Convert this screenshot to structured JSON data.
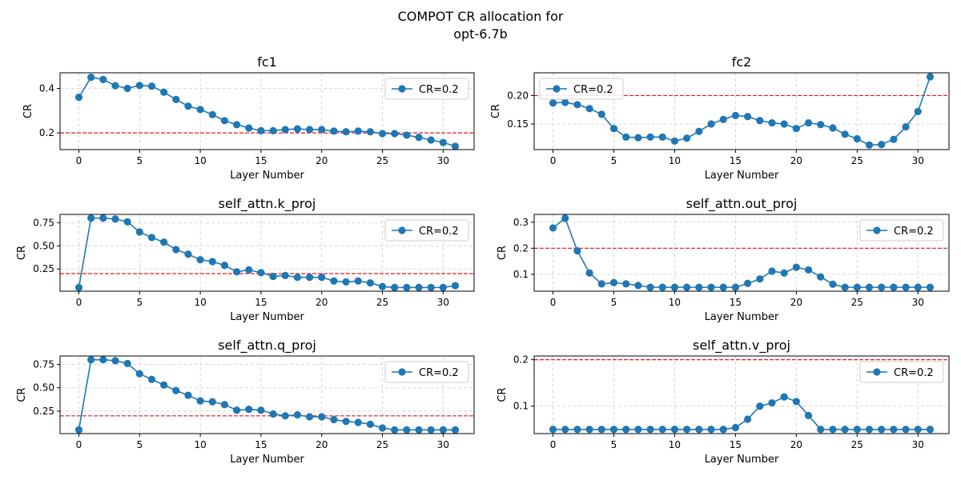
{
  "figure": {
    "title_line1": "COMPOT CR allocation for",
    "title_line2": "opt-6.7b"
  },
  "colors": {
    "series": "#1f77b4",
    "reference": "#e41a1c",
    "grid": "#b0b0b0",
    "axis": "#000000"
  },
  "chart_data": [
    {
      "type": "line",
      "title": "fc1",
      "xlabel": "Layer Number",
      "ylabel": "CR",
      "xlim": [
        -1.55,
        32.55
      ],
      "ylim": [
        0.125,
        0.47
      ],
      "xticks": [
        0,
        5,
        10,
        15,
        20,
        25,
        30
      ],
      "yticks": [
        0.2,
        0.4
      ],
      "ytick_labels": [
        "0.2",
        "0.4"
      ],
      "reference_line": 0.2,
      "legend": "upper right",
      "series": [
        {
          "name": "CR=0.2",
          "x": [
            0,
            1,
            2,
            3,
            4,
            5,
            6,
            7,
            8,
            9,
            10,
            11,
            12,
            13,
            14,
            15,
            16,
            17,
            18,
            19,
            20,
            21,
            22,
            23,
            24,
            25,
            26,
            27,
            28,
            29,
            30,
            31
          ],
          "values": [
            0.36,
            0.45,
            0.44,
            0.412,
            0.4,
            0.413,
            0.41,
            0.383,
            0.35,
            0.32,
            0.305,
            0.282,
            0.255,
            0.237,
            0.222,
            0.21,
            0.21,
            0.215,
            0.218,
            0.215,
            0.215,
            0.208,
            0.205,
            0.208,
            0.205,
            0.197,
            0.197,
            0.19,
            0.18,
            0.168,
            0.157,
            0.14
          ]
        }
      ]
    },
    {
      "type": "line",
      "title": "fc2",
      "xlabel": "Layer Number",
      "ylabel": "CR",
      "xlim": [
        -1.55,
        32.55
      ],
      "ylim": [
        0.105,
        0.24
      ],
      "xticks": [
        0,
        5,
        10,
        15,
        20,
        25,
        30
      ],
      "yticks": [
        0.15,
        0.2
      ],
      "ytick_labels": [
        "0.15",
        "0.20"
      ],
      "reference_line": 0.2,
      "legend": "upper left",
      "series": [
        {
          "name": "CR=0.2",
          "x": [
            0,
            1,
            2,
            3,
            4,
            5,
            6,
            7,
            8,
            9,
            10,
            11,
            12,
            13,
            14,
            15,
            16,
            17,
            18,
            19,
            20,
            21,
            22,
            23,
            24,
            25,
            26,
            27,
            28,
            29,
            30,
            31
          ],
          "values": [
            0.187,
            0.188,
            0.184,
            0.177,
            0.167,
            0.142,
            0.127,
            0.126,
            0.127,
            0.127,
            0.12,
            0.125,
            0.137,
            0.15,
            0.158,
            0.165,
            0.163,
            0.156,
            0.152,
            0.15,
            0.142,
            0.152,
            0.149,
            0.143,
            0.132,
            0.124,
            0.113,
            0.114,
            0.123,
            0.145,
            0.172,
            0.233
          ]
        }
      ]
    },
    {
      "type": "line",
      "title": "self_attn.k_proj",
      "xlabel": "Layer Number",
      "ylabel": "CR",
      "xlim": [
        -1.55,
        32.55
      ],
      "ylim": [
        0.01,
        0.84
      ],
      "xticks": [
        0,
        5,
        10,
        15,
        20,
        25,
        30
      ],
      "yticks": [
        0.25,
        0.5,
        0.75
      ],
      "ytick_labels": [
        "0.25",
        "0.50",
        "0.75"
      ],
      "reference_line": 0.2,
      "legend": "upper right",
      "series": [
        {
          "name": "CR=0.2",
          "x": [
            0,
            1,
            2,
            3,
            4,
            5,
            6,
            7,
            8,
            9,
            10,
            11,
            12,
            13,
            14,
            15,
            16,
            17,
            18,
            19,
            20,
            21,
            22,
            23,
            24,
            25,
            26,
            27,
            28,
            29,
            30,
            31
          ],
          "values": [
            0.05,
            0.8,
            0.8,
            0.79,
            0.76,
            0.65,
            0.59,
            0.54,
            0.46,
            0.41,
            0.35,
            0.33,
            0.29,
            0.22,
            0.24,
            0.21,
            0.17,
            0.18,
            0.16,
            0.16,
            0.16,
            0.12,
            0.11,
            0.12,
            0.1,
            0.06,
            0.05,
            0.05,
            0.05,
            0.05,
            0.05,
            0.07
          ]
        }
      ]
    },
    {
      "type": "line",
      "title": "self_attn.out_proj",
      "xlabel": "Layer Number",
      "ylabel": "CR",
      "xlim": [
        -1.55,
        32.55
      ],
      "ylim": [
        0.035,
        0.33
      ],
      "xticks": [
        0,
        5,
        10,
        15,
        20,
        25,
        30
      ],
      "yticks": [
        0.1,
        0.2,
        0.3
      ],
      "ytick_labels": [
        "0.1",
        "0.2",
        "0.3"
      ],
      "reference_line": 0.2,
      "legend": "upper right",
      "series": [
        {
          "name": "CR=0.2",
          "x": [
            0,
            1,
            2,
            3,
            4,
            5,
            6,
            7,
            8,
            9,
            10,
            11,
            12,
            13,
            14,
            15,
            16,
            17,
            18,
            19,
            20,
            21,
            22,
            23,
            24,
            25,
            26,
            27,
            28,
            29,
            30,
            31
          ],
          "values": [
            0.278,
            0.315,
            0.19,
            0.105,
            0.063,
            0.068,
            0.063,
            0.057,
            0.05,
            0.05,
            0.05,
            0.05,
            0.05,
            0.05,
            0.05,
            0.05,
            0.065,
            0.082,
            0.112,
            0.105,
            0.127,
            0.117,
            0.09,
            0.062,
            0.05,
            0.05,
            0.05,
            0.05,
            0.05,
            0.05,
            0.05,
            0.05
          ]
        }
      ]
    },
    {
      "type": "line",
      "title": "self_attn.q_proj",
      "xlabel": "Layer Number",
      "ylabel": "CR",
      "xlim": [
        -1.55,
        32.55
      ],
      "ylim": [
        0.01,
        0.84
      ],
      "xticks": [
        0,
        5,
        10,
        15,
        20,
        25,
        30
      ],
      "yticks": [
        0.25,
        0.5,
        0.75
      ],
      "ytick_labels": [
        "0.25",
        "0.50",
        "0.75"
      ],
      "reference_line": 0.2,
      "legend": "upper right",
      "series": [
        {
          "name": "CR=0.2",
          "x": [
            0,
            1,
            2,
            3,
            4,
            5,
            6,
            7,
            8,
            9,
            10,
            11,
            12,
            13,
            14,
            15,
            16,
            17,
            18,
            19,
            20,
            21,
            22,
            23,
            24,
            25,
            26,
            27,
            28,
            29,
            30,
            31
          ],
          "values": [
            0.05,
            0.8,
            0.8,
            0.79,
            0.76,
            0.65,
            0.59,
            0.53,
            0.47,
            0.42,
            0.36,
            0.35,
            0.32,
            0.26,
            0.27,
            0.26,
            0.22,
            0.2,
            0.21,
            0.19,
            0.19,
            0.16,
            0.14,
            0.13,
            0.11,
            0.07,
            0.05,
            0.05,
            0.05,
            0.05,
            0.05,
            0.05
          ]
        }
      ]
    },
    {
      "type": "line",
      "title": "self_attn.v_proj",
      "xlabel": "Layer Number",
      "ylabel": "CR",
      "xlim": [
        -1.55,
        32.55
      ],
      "ylim": [
        0.041,
        0.208
      ],
      "xticks": [
        0,
        5,
        10,
        15,
        20,
        25,
        30
      ],
      "yticks": [
        0.1,
        0.2
      ],
      "ytick_labels": [
        "0.1",
        "0.2"
      ],
      "reference_line": 0.2,
      "legend": "upper right",
      "series": [
        {
          "name": "CR=0.2",
          "x": [
            0,
            1,
            2,
            3,
            4,
            5,
            6,
            7,
            8,
            9,
            10,
            11,
            12,
            13,
            14,
            15,
            16,
            17,
            18,
            19,
            20,
            21,
            22,
            23,
            24,
            25,
            26,
            27,
            28,
            29,
            30,
            31
          ],
          "values": [
            0.05,
            0.05,
            0.05,
            0.05,
            0.05,
            0.05,
            0.05,
            0.05,
            0.05,
            0.05,
            0.05,
            0.05,
            0.05,
            0.05,
            0.05,
            0.054,
            0.072,
            0.1,
            0.107,
            0.12,
            0.11,
            0.08,
            0.05,
            0.05,
            0.05,
            0.05,
            0.05,
            0.05,
            0.05,
            0.05,
            0.05,
            0.05
          ]
        }
      ]
    }
  ]
}
